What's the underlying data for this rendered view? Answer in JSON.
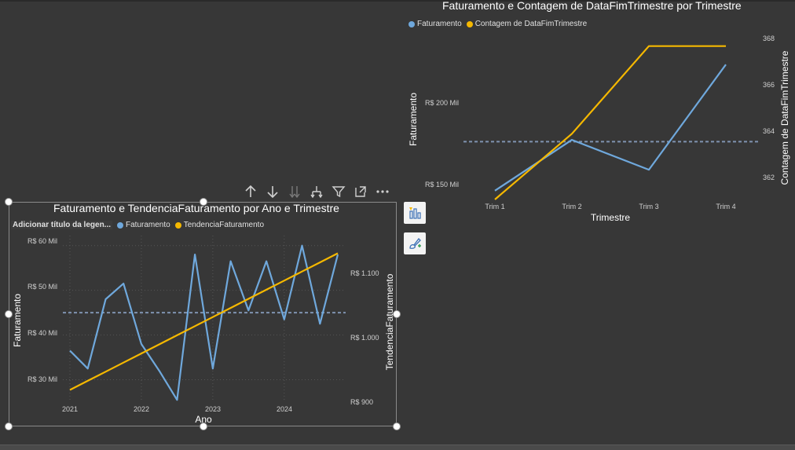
{
  "top_chart": {
    "title": "Faturamento e Contagem de DataFimTrimestre por Trimestre",
    "legend": [
      {
        "label": "Faturamento",
        "color": "#6fa8dc"
      },
      {
        "label": "Contagem de DataFimTrimestre",
        "color": "#f5b800"
      }
    ],
    "x_axis_title": "Trimestre",
    "y_axis_title": "Faturamento",
    "y2_axis_title": "Contagem de DataFimTrimestre",
    "x_ticks": [
      "Trim 1",
      "Trim 2",
      "Trim 3",
      "Trim 4"
    ],
    "y_ticks": [
      "R$ 150 Mil",
      "R$ 200 Mil"
    ],
    "y2_ticks": [
      "362",
      "364",
      "366",
      "368"
    ]
  },
  "bottom_chart": {
    "title": "Faturamento e TendenciaFaturamento por Ano e Trimestre",
    "legend_title": "Adicionar título da legen...",
    "legend": [
      {
        "label": "Faturamento",
        "color": "#6fa8dc"
      },
      {
        "label": "TendenciaFaturamento",
        "color": "#f5b800"
      }
    ],
    "x_axis_title": "Ano",
    "y_axis_title": "Faturamento",
    "y2_axis_title": "TendenciaFaturamento",
    "x_ticks": [
      "2021",
      "2022",
      "2023",
      "2024"
    ],
    "y_ticks": [
      "R$ 30 Mil",
      "R$ 40 Mil",
      "R$ 50 Mil",
      "R$ 60 Mil"
    ],
    "y2_ticks": [
      "R$ 900",
      "R$ 1.000",
      "R$ 1.100"
    ]
  },
  "chart_data": [
    {
      "type": "line",
      "categories": [
        "Trim 1",
        "Trim 2",
        "Trim 3",
        "Trim 4"
      ],
      "series": [
        {
          "name": "Faturamento",
          "axis": "left",
          "values": [
            150,
            179,
            162,
            222
          ]
        },
        {
          "name": "Contagem de DataFimTrimestre",
          "axis": "right",
          "values": [
            361,
            364,
            368,
            368
          ]
        }
      ],
      "reference_line": {
        "axis": "left",
        "value": 178,
        "style": "dashed"
      },
      "ylim": [
        145,
        240
      ],
      "y2lim": [
        361,
        368.6
      ],
      "title": "Faturamento e Contagem de DataFimTrimestre por Trimestre",
      "xlabel": "Trimestre",
      "ylabel": "Faturamento",
      "y2label": "Contagem de DataFimTrimestre",
      "grid": false,
      "legend": "top-left"
    },
    {
      "type": "line",
      "x": [
        2021.0,
        2021.25,
        2021.5,
        2021.75,
        2022.0,
        2022.25,
        2022.5,
        2022.75,
        2023.0,
        2023.25,
        2023.5,
        2023.75,
        2024.0,
        2024.25,
        2024.5,
        2024.75
      ],
      "series": [
        {
          "name": "Faturamento",
          "axis": "left",
          "values": [
            36.5,
            32.5,
            48,
            51.5,
            38,
            32,
            25.5,
            58,
            32.5,
            56.5,
            45.5,
            56.5,
            43.5,
            60,
            42.5,
            58
          ]
        },
        {
          "name": "TendenciaFaturamento",
          "axis": "right",
          "values": [
            915,
            930,
            945,
            960,
            975,
            990,
            1005,
            1020,
            1035,
            1050,
            1065,
            1080,
            1095,
            1110,
            1125,
            1140
          ]
        }
      ],
      "reference_line": {
        "axis": "left",
        "value": 45,
        "style": "dashed"
      },
      "ylim": [
        25,
        61
      ],
      "y2lim": [
        895,
        1160
      ],
      "title": "Faturamento e TendenciaFaturamento por Ano e Trimestre",
      "xlabel": "Ano",
      "ylabel": "Faturamento",
      "y2label": "TendenciaFaturamento",
      "grid": true,
      "legend": "top-left"
    }
  ]
}
